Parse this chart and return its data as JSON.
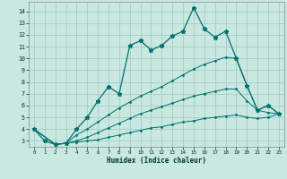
{
  "xlabel": "Humidex (Indice chaleur)",
  "bg_color": "#c8e8e0",
  "grid_color": "#a0c8c0",
  "line_color": "#007070",
  "xlim": [
    -0.5,
    23.5
  ],
  "ylim": [
    2.5,
    14.8
  ],
  "xticks": [
    0,
    1,
    2,
    3,
    4,
    5,
    6,
    7,
    8,
    9,
    10,
    11,
    12,
    13,
    14,
    15,
    16,
    17,
    18,
    19,
    20,
    21,
    22,
    23
  ],
  "yticks": [
    3,
    4,
    5,
    6,
    7,
    8,
    9,
    10,
    11,
    12,
    13,
    14
  ],
  "line1_x": [
    0,
    1,
    2,
    3,
    4,
    5,
    6,
    7,
    8,
    9,
    10,
    11,
    12,
    13,
    14,
    15,
    16,
    17,
    18,
    19,
    20,
    21,
    22,
    23
  ],
  "line1_y": [
    4.0,
    3.0,
    2.7,
    2.8,
    4.0,
    5.0,
    6.4,
    7.6,
    7.0,
    11.1,
    11.5,
    10.7,
    11.1,
    11.9,
    12.3,
    14.3,
    12.5,
    11.8,
    12.3,
    10.0,
    7.7,
    5.6,
    6.0,
    5.3
  ],
  "line2_x": [
    0,
    2,
    3,
    4,
    5,
    6,
    7,
    8,
    9,
    10,
    11,
    12,
    13,
    14,
    15,
    16,
    17,
    18,
    19,
    20,
    21,
    22,
    23
  ],
  "line2_y": [
    4.0,
    2.7,
    2.8,
    3.5,
    4.0,
    4.6,
    5.2,
    5.8,
    6.3,
    6.8,
    7.2,
    7.6,
    8.1,
    8.6,
    9.1,
    9.5,
    9.8,
    10.1,
    10.0,
    7.7,
    5.6,
    6.0,
    5.3
  ],
  "line3_x": [
    0,
    2,
    3,
    4,
    5,
    6,
    7,
    8,
    9,
    10,
    11,
    12,
    13,
    14,
    15,
    16,
    17,
    18,
    19,
    20,
    21,
    22,
    23
  ],
  "line3_y": [
    4.0,
    2.7,
    2.8,
    3.0,
    3.3,
    3.7,
    4.1,
    4.5,
    4.9,
    5.3,
    5.6,
    5.9,
    6.2,
    6.5,
    6.8,
    7.0,
    7.2,
    7.4,
    7.4,
    6.4,
    5.6,
    5.4,
    5.3
  ],
  "line4_x": [
    0,
    2,
    3,
    4,
    5,
    6,
    7,
    8,
    9,
    10,
    11,
    12,
    13,
    14,
    15,
    16,
    17,
    18,
    19,
    20,
    21,
    22,
    23
  ],
  "line4_y": [
    4.0,
    2.7,
    2.8,
    2.9,
    3.0,
    3.1,
    3.3,
    3.5,
    3.7,
    3.9,
    4.1,
    4.2,
    4.4,
    4.6,
    4.7,
    4.9,
    5.0,
    5.1,
    5.2,
    5.0,
    4.9,
    5.0,
    5.3
  ]
}
